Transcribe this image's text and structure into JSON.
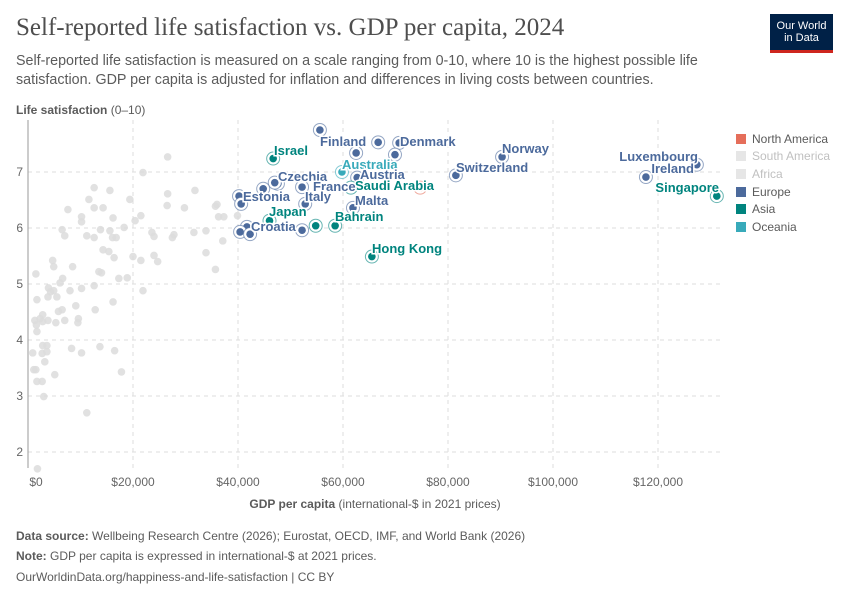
{
  "header": {
    "title": "Self-reported life satisfaction vs. GDP per capita, 2024",
    "subtitle": "Self-reported life satisfaction is measured on a scale ranging from 0-10, where 10 is the highest possible life satisfaction. GDP per capita is adjusted for inflation and differences in living costs between countries.",
    "logo_line1": "Our World",
    "logo_line2": "in Data"
  },
  "footer": {
    "source_label": "Data source:",
    "source": "Wellbeing Research Centre (2026); Eurostat, OECD, IMF, and World Bank (2026)",
    "note_label": "Note:",
    "note": "GDP per capita is expressed in international-$ at 2021 prices.",
    "url": "OurWorldinData.org/happiness-and-life-satisfaction | CC BY"
  },
  "chart_data": {
    "type": "scatter",
    "title": "Self-reported life satisfaction vs. GDP per capita, 2024",
    "xlabel_bold": "GDP per capita",
    "xlabel_rest": "(international-$ in 2021 prices)",
    "ylabel_bold": "Life satisfaction",
    "ylabel_rest": "(0–10)",
    "xlim": [
      0,
      133000
    ],
    "ylim": [
      1.7,
      7.8
    ],
    "x_ticks": [
      0,
      20000,
      40000,
      60000,
      80000,
      100000,
      120000
    ],
    "x_tick_labels": [
      "$0",
      "$20,000",
      "$40,000",
      "$60,000",
      "$80,000",
      "$100,000",
      "$120,000"
    ],
    "y_ticks": [
      2,
      3,
      4,
      5,
      6,
      7
    ],
    "y_tick_labels": [
      "2",
      "3",
      "4",
      "5",
      "6",
      "7"
    ],
    "grid": true,
    "legend_position": "right",
    "legend": [
      {
        "name": "North America",
        "color": "#E56E5A",
        "active": true
      },
      {
        "name": "South America",
        "color": "#e6e6e6",
        "active": false
      },
      {
        "name": "Africa",
        "color": "#e6e6e6",
        "active": false
      },
      {
        "name": "Europe",
        "color": "#4C6A9C",
        "active": true
      },
      {
        "name": "Asia",
        "color": "#00847E",
        "active": true
      },
      {
        "name": "Oceania",
        "color": "#38AABA",
        "active": true
      }
    ],
    "highlighted_points": [
      {
        "label": "Finland",
        "region": "Europe",
        "x": 55600,
        "y": 7.75
      },
      {
        "label": "Denmark",
        "region": "Europe",
        "x": 70700,
        "y": 7.52
      },
      {
        "label": "",
        "region": "Europe",
        "x": 66700,
        "y": 7.53
      },
      {
        "label": "",
        "region": "Europe",
        "x": 62500,
        "y": 7.34
      },
      {
        "label": "",
        "region": "Europe",
        "x": 69900,
        "y": 7.31
      },
      {
        "label": "Israel",
        "region": "Asia",
        "x": 46700,
        "y": 7.24
      },
      {
        "label": "Norway",
        "region": "Europe",
        "x": 90300,
        "y": 7.27
      },
      {
        "label": "Switzerland",
        "region": "Europe",
        "x": 81500,
        "y": 6.94
      },
      {
        "label": "Luxembourg",
        "region": "Europe",
        "x": 127400,
        "y": 7.13
      },
      {
        "label": "Ireland",
        "region": "Europe",
        "x": 117700,
        "y": 6.91
      },
      {
        "label": "Singapore",
        "region": "Asia",
        "x": 131200,
        "y": 6.57
      },
      {
        "label": "Australia",
        "region": "Oceania",
        "x": 59800,
        "y": 7.0
      },
      {
        "label": "Austria",
        "region": "Europe",
        "x": 62700,
        "y": 6.9
      },
      {
        "label": "Saudi Arabia",
        "region": "Asia",
        "x": 61500,
        "y": 6.72
      },
      {
        "label": "",
        "region": "North America",
        "x": 74700,
        "y": 6.72
      },
      {
        "label": "Czechia",
        "region": "Europe",
        "x": 47600,
        "y": 6.79
      },
      {
        "label": "",
        "region": "Europe",
        "x": 47000,
        "y": 6.81
      },
      {
        "label": "",
        "region": "Europe",
        "x": 44800,
        "y": 6.7
      },
      {
        "label": "France",
        "region": "Europe",
        "x": 52200,
        "y": 6.73
      },
      {
        "label": "Estonia",
        "region": "Europe",
        "x": 40200,
        "y": 6.57
      },
      {
        "label": "",
        "region": "Europe",
        "x": 40600,
        "y": 6.43
      },
      {
        "label": "Italy",
        "region": "Europe",
        "x": 52800,
        "y": 6.43
      },
      {
        "label": "Malta",
        "region": "Europe",
        "x": 61900,
        "y": 6.36
      },
      {
        "label": "Japan",
        "region": "Asia",
        "x": 46000,
        "y": 6.13
      },
      {
        "label": "Croatia",
        "region": "Europe",
        "x": 41700,
        "y": 6.02
      },
      {
        "label": "",
        "region": "Europe",
        "x": 40400,
        "y": 5.93
      },
      {
        "label": "",
        "region": "Europe",
        "x": 42300,
        "y": 5.89
      },
      {
        "label": "",
        "region": "Europe",
        "x": 52200,
        "y": 5.96
      },
      {
        "label": "",
        "region": "Asia",
        "x": 54800,
        "y": 6.04
      },
      {
        "label": "Bahrain",
        "region": "Asia",
        "x": 58500,
        "y": 6.04
      },
      {
        "label": "Hong Kong",
        "region": "Asia",
        "x": 65500,
        "y": 5.49
      }
    ],
    "background_points": [
      [
        26600,
        7.27
      ],
      [
        21900,
        6.99
      ],
      [
        12600,
        6.72
      ],
      [
        15600,
        6.67
      ],
      [
        31800,
        6.67
      ],
      [
        26600,
        6.61
      ],
      [
        11600,
        6.51
      ],
      [
        19400,
        6.51
      ],
      [
        26500,
        6.4
      ],
      [
        29800,
        6.36
      ],
      [
        35700,
        6.39
      ],
      [
        36000,
        6.42
      ],
      [
        7600,
        6.33
      ],
      [
        12600,
        6.36
      ],
      [
        14300,
        6.36
      ],
      [
        10200,
        6.2
      ],
      [
        16200,
        6.18
      ],
      [
        21500,
        6.22
      ],
      [
        20400,
        6.13
      ],
      [
        36300,
        6.2
      ],
      [
        37300,
        6.2
      ],
      [
        39900,
        6.22
      ],
      [
        10200,
        6.11
      ],
      [
        18300,
        6.01
      ],
      [
        6500,
        5.97
      ],
      [
        13800,
        5.97
      ],
      [
        15600,
        5.95
      ],
      [
        33900,
        5.95
      ],
      [
        23600,
        5.92
      ],
      [
        31600,
        5.92
      ],
      [
        7000,
        5.86
      ],
      [
        11200,
        5.86
      ],
      [
        12600,
        5.83
      ],
      [
        16100,
        5.83
      ],
      [
        16800,
        5.83
      ],
      [
        24000,
        5.85
      ],
      [
        27800,
        5.88
      ],
      [
        27500,
        5.83
      ],
      [
        37100,
        5.77
      ],
      [
        14300,
        5.61
      ],
      [
        15400,
        5.58
      ],
      [
        16400,
        5.47
      ],
      [
        20000,
        5.49
      ],
      [
        21500,
        5.42
      ],
      [
        24000,
        5.51
      ],
      [
        24700,
        5.4
      ],
      [
        33900,
        5.56
      ],
      [
        4700,
        5.42
      ],
      [
        4900,
        5.31
      ],
      [
        8500,
        5.31
      ],
      [
        35700,
        5.26
      ],
      [
        1500,
        5.18
      ],
      [
        13500,
        5.22
      ],
      [
        14000,
        5.2
      ],
      [
        6600,
        5.1
      ],
      [
        6100,
        5.02
      ],
      [
        17300,
        5.1
      ],
      [
        18900,
        5.11
      ],
      [
        1700,
        4.72
      ],
      [
        3900,
        4.93
      ],
      [
        4300,
        4.86
      ],
      [
        4900,
        4.88
      ],
      [
        8000,
        4.88
      ],
      [
        10200,
        4.92
      ],
      [
        12600,
        4.97
      ],
      [
        21900,
        4.88
      ],
      [
        3800,
        4.77
      ],
      [
        5500,
        4.77
      ],
      [
        9100,
        4.61
      ],
      [
        16200,
        4.68
      ],
      [
        5800,
        4.51
      ],
      [
        6500,
        4.54
      ],
      [
        12800,
        4.54
      ],
      [
        2800,
        4.45
      ],
      [
        1300,
        4.35
      ],
      [
        2300,
        4.38
      ],
      [
        2800,
        4.33
      ],
      [
        3800,
        4.35
      ],
      [
        1600,
        4.27
      ],
      [
        5300,
        4.31
      ],
      [
        7000,
        4.35
      ],
      [
        9600,
        4.38
      ],
      [
        9500,
        4.31
      ],
      [
        1700,
        4.15
      ],
      [
        900,
        3.77
      ],
      [
        2800,
        3.9
      ],
      [
        3600,
        3.9
      ],
      [
        2700,
        3.76
      ],
      [
        3600,
        3.79
      ],
      [
        3200,
        3.61
      ],
      [
        8300,
        3.85
      ],
      [
        10200,
        3.77
      ],
      [
        13700,
        3.88
      ],
      [
        16500,
        3.81
      ],
      [
        1100,
        3.47
      ],
      [
        1500,
        3.47
      ],
      [
        5100,
        3.38
      ],
      [
        17800,
        3.43
      ],
      [
        1700,
        3.26
      ],
      [
        2700,
        3.26
      ],
      [
        3000,
        2.99
      ],
      [
        11200,
        2.7
      ],
      [
        1800,
        1.7
      ]
    ]
  }
}
